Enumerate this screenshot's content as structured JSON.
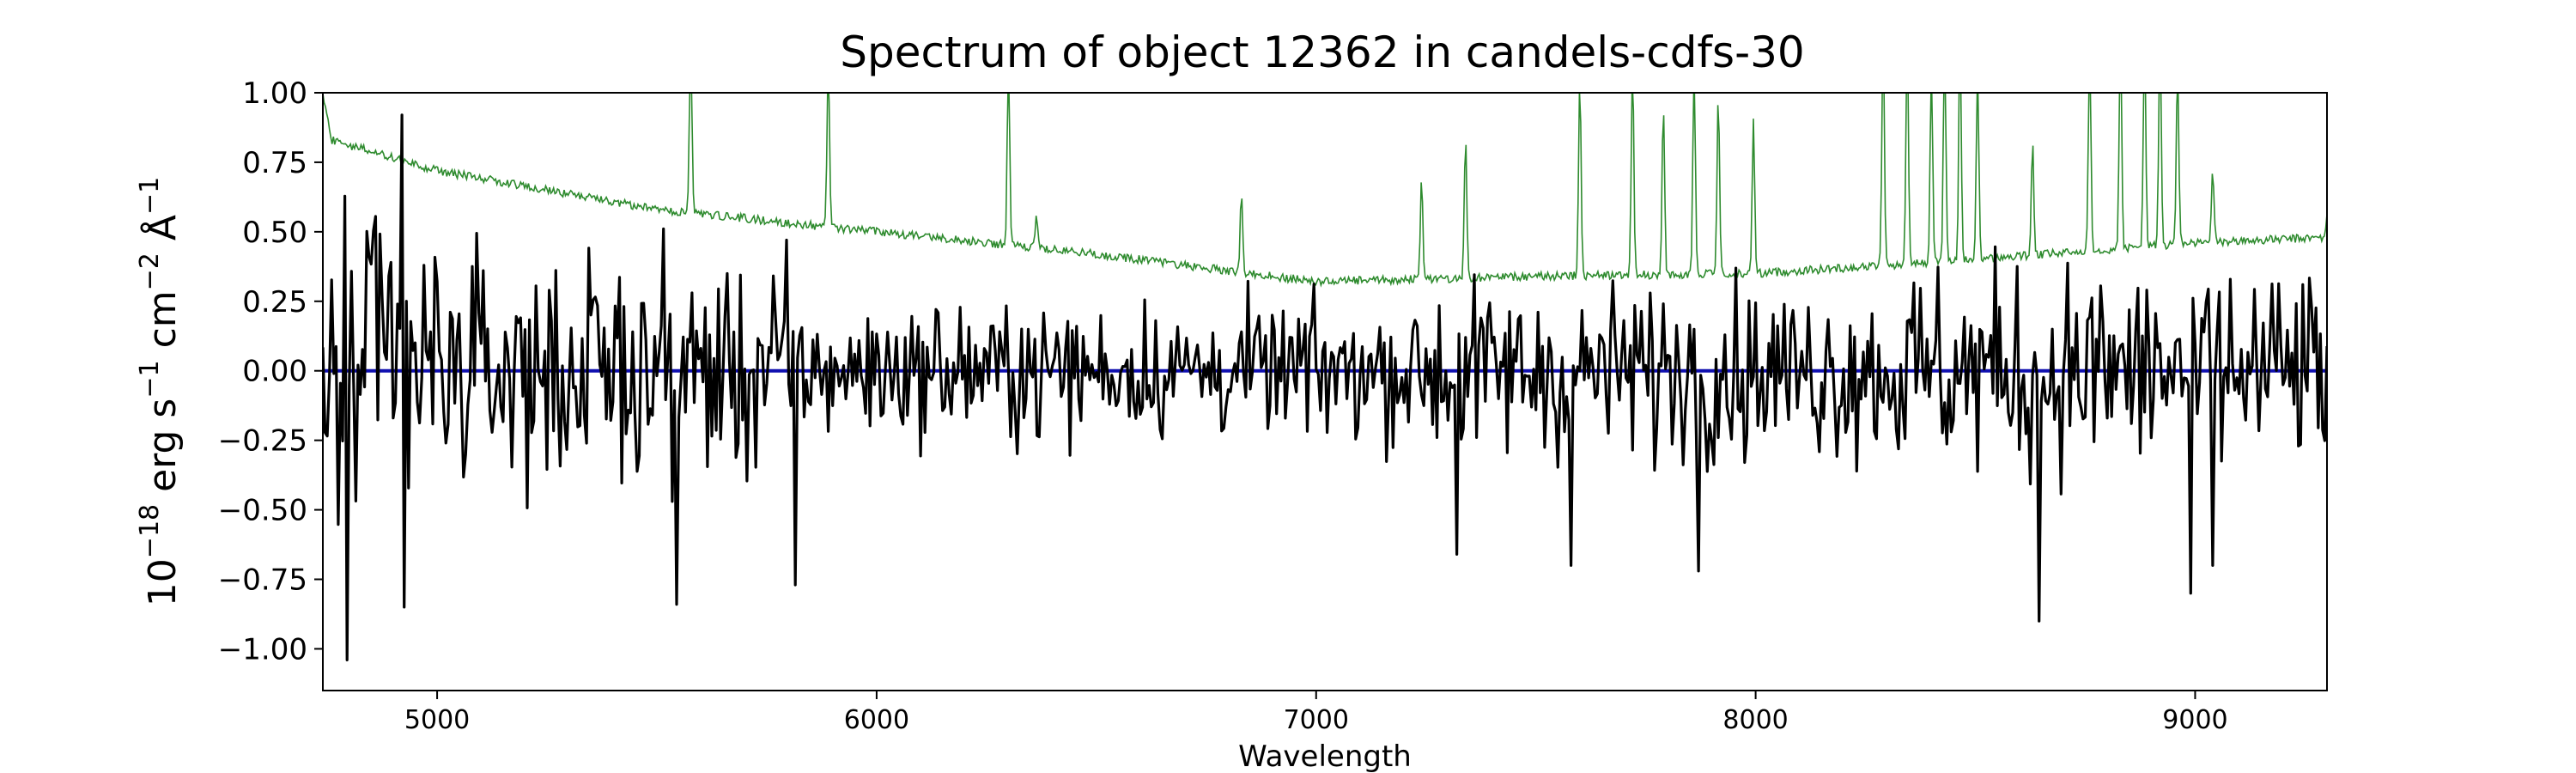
{
  "chart_data": {
    "type": "line",
    "title": "Spectrum of object 12362 in candels-cdfs-30",
    "xlabel": "Wavelength",
    "ylabel": {
      "base": "10",
      "exp": "−18",
      "erg": " erg s",
      "sexp": "−1",
      "cm": " cm",
      "cmexp": "−2",
      "ang": " Å",
      "angexp": "−1"
    },
    "xlim": [
      4740,
      9300
    ],
    "ylim": [
      -1.15,
      1.0
    ],
    "x_ticks": [
      5000,
      6000,
      7000,
      8000,
      9000
    ],
    "x_tick_labels": [
      "5000",
      "6000",
      "7000",
      "8000",
      "9000"
    ],
    "y_ticks": [
      1.0,
      0.75,
      0.5,
      0.25,
      0.0,
      -0.25,
      -0.5,
      -0.75,
      -1.0
    ],
    "y_tick_labels": [
      "1.00",
      "0.75",
      "0.50",
      "0.25",
      "0.00",
      "−0.25",
      "−0.50",
      "−0.75",
      "−1.00"
    ],
    "grid": false,
    "series": [
      {
        "role": "flux",
        "color": "#000000",
        "x_start": 4740,
        "x_end": 9300,
        "x_step": 5,
        "noise_by_region": [
          {
            "from": 4740,
            "to": 5000,
            "sigma": 0.42
          },
          {
            "from": 5000,
            "to": 5800,
            "sigma": 0.28
          },
          {
            "from": 5800,
            "to": 7200,
            "sigma": 0.17
          },
          {
            "from": 7200,
            "to": 8300,
            "sigma": 0.22
          },
          {
            "from": 8300,
            "to": 9300,
            "sigma": 0.27
          }
        ],
        "spikes": [
          {
            "x": 4795,
            "y": -1.04
          },
          {
            "x": 4920,
            "y": 0.92
          },
          {
            "x": 4925,
            "y": -0.85
          },
          {
            "x": 5545,
            "y": -0.84
          },
          {
            "x": 5815,
            "y": -0.77
          },
          {
            "x": 7320,
            "y": -0.66
          },
          {
            "x": 7580,
            "y": -0.7
          },
          {
            "x": 7870,
            "y": -0.72
          },
          {
            "x": 8645,
            "y": -0.9
          },
          {
            "x": 8990,
            "y": -0.8
          },
          {
            "x": 9040,
            "y": -0.7
          }
        ]
      },
      {
        "role": "error",
        "color": "#2e8b2e",
        "continuum": [
          {
            "x": 4740,
            "y": 1.0
          },
          {
            "x": 4760,
            "y": 0.83
          },
          {
            "x": 5000,
            "y": 0.72
          },
          {
            "x": 5500,
            "y": 0.58
          },
          {
            "x": 6000,
            "y": 0.5
          },
          {
            "x": 6500,
            "y": 0.42
          },
          {
            "x": 7000,
            "y": 0.32
          },
          {
            "x": 7500,
            "y": 0.34
          },
          {
            "x": 8000,
            "y": 0.35
          },
          {
            "x": 8500,
            "y": 0.4
          },
          {
            "x": 9000,
            "y": 0.46
          },
          {
            "x": 9300,
            "y": 0.48
          }
        ],
        "emission_lines": [
          {
            "x": 5577,
            "y": 1.2
          },
          {
            "x": 5890,
            "y": 1.1
          },
          {
            "x": 6300,
            "y": 1.1
          },
          {
            "x": 6364,
            "y": 0.55
          },
          {
            "x": 6830,
            "y": 0.65
          },
          {
            "x": 7240,
            "y": 0.7
          },
          {
            "x": 7340,
            "y": 0.85
          },
          {
            "x": 7600,
            "y": 1.05
          },
          {
            "x": 7720,
            "y": 1.1
          },
          {
            "x": 7790,
            "y": 0.95
          },
          {
            "x": 7860,
            "y": 1.1
          },
          {
            "x": 7915,
            "y": 1.0
          },
          {
            "x": 7995,
            "y": 0.9
          },
          {
            "x": 8290,
            "y": 1.2
          },
          {
            "x": 8345,
            "y": 1.2
          },
          {
            "x": 8400,
            "y": 1.1
          },
          {
            "x": 8430,
            "y": 1.2
          },
          {
            "x": 8465,
            "y": 1.2
          },
          {
            "x": 8505,
            "y": 1.1
          },
          {
            "x": 8630,
            "y": 0.82
          },
          {
            "x": 8760,
            "y": 1.2
          },
          {
            "x": 8830,
            "y": 1.2
          },
          {
            "x": 8885,
            "y": 1.2
          },
          {
            "x": 8920,
            "y": 1.2
          },
          {
            "x": 8960,
            "y": 1.1
          },
          {
            "x": 9040,
            "y": 0.72
          },
          {
            "x": 9300,
            "y": 0.55
          }
        ]
      },
      {
        "role": "model",
        "color": "#1010b0",
        "y": 0.0
      }
    ]
  }
}
